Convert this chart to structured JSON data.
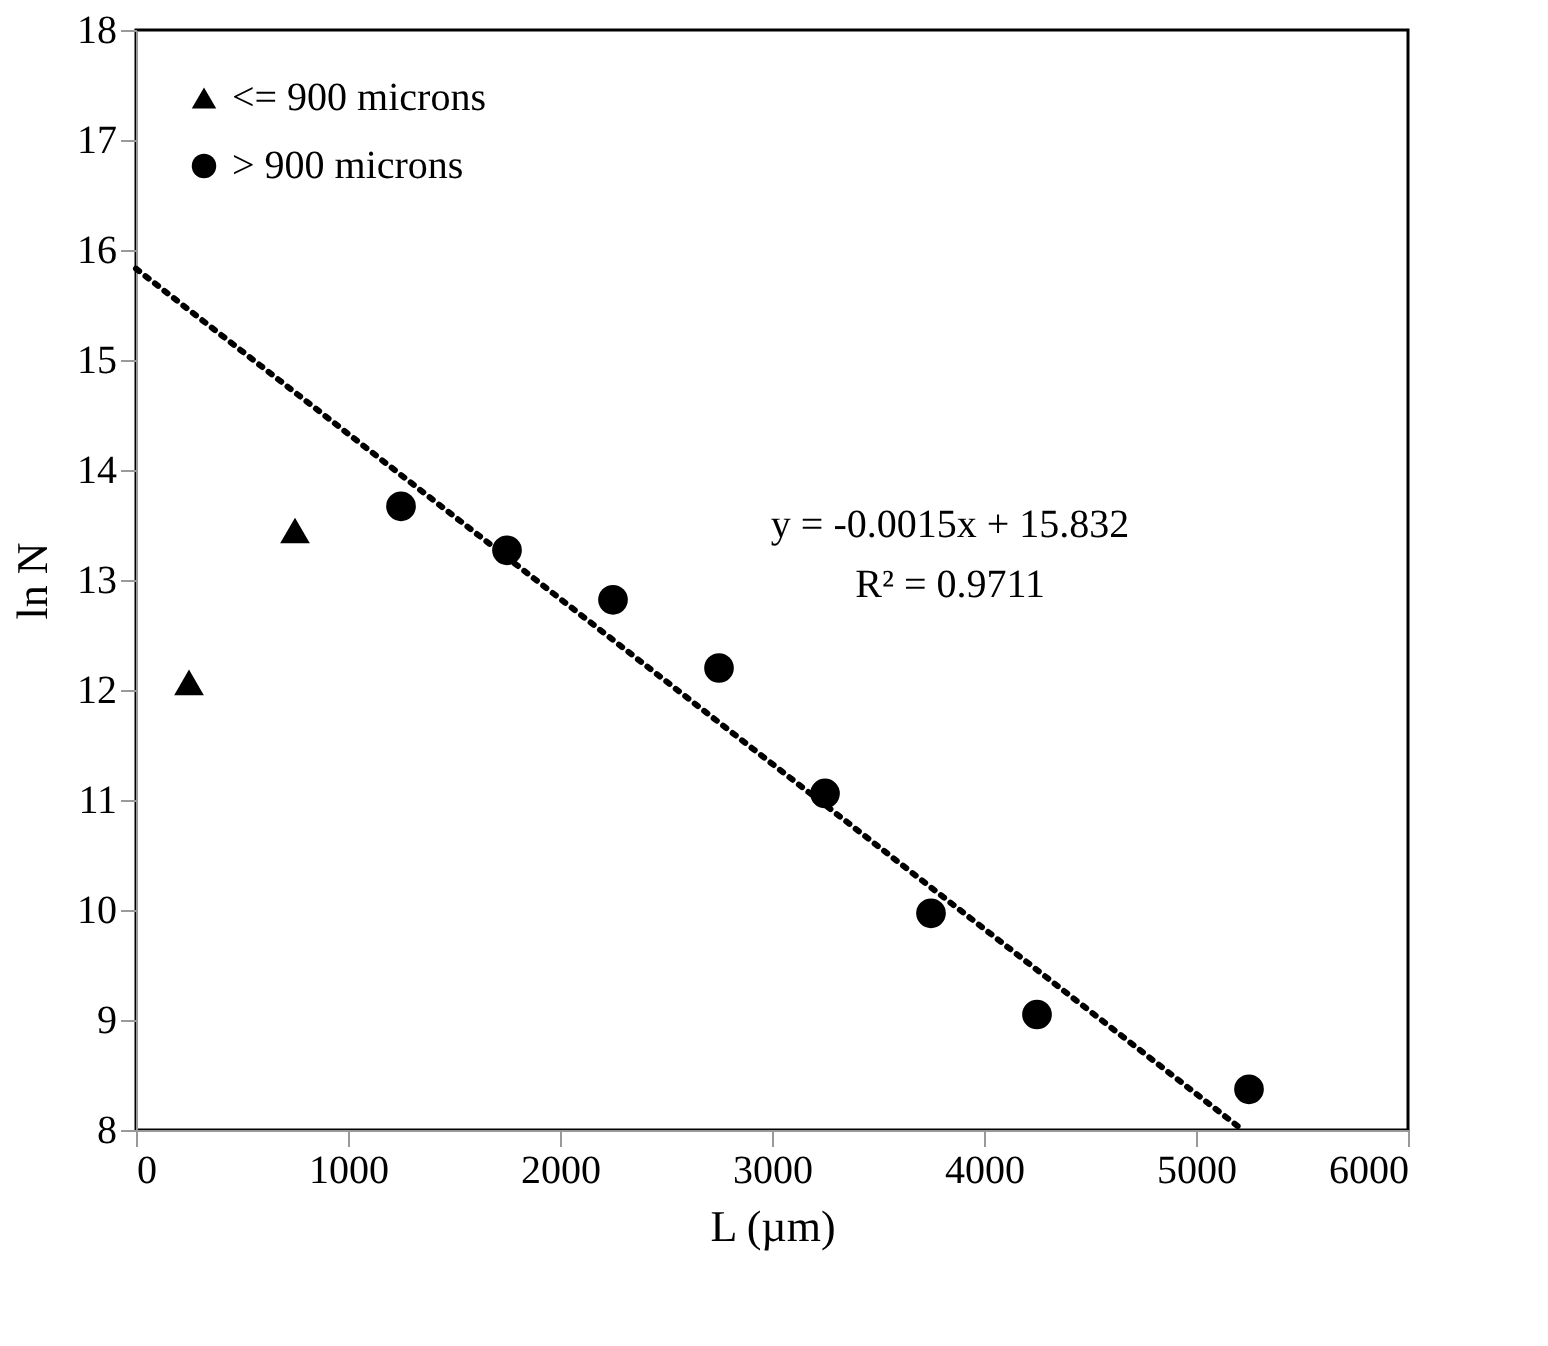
{
  "chart_data": {
    "type": "scatter",
    "xlabel": "L (µm)",
    "ylabel": "ln N",
    "series": [
      {
        "name": "<= 900 microns",
        "color": "#000000",
        "marker": "triangle",
        "x": [
          250,
          750
        ],
        "values": [
          12.07,
          13.45
        ]
      },
      {
        "name": "> 900 microns",
        "color": "#000000",
        "marker": "circle",
        "x": [
          1250,
          1750,
          2250,
          2750,
          3250,
          3750,
          4250,
          5250
        ],
        "values": [
          13.67,
          13.27,
          12.82,
          12.2,
          11.06,
          9.97,
          9.05,
          8.37
        ]
      },
      {
        "type": "line",
        "color": "#000000",
        "line_style": "dotted",
        "x": [
          0,
          5200
        ],
        "values": [
          15.83,
          8.03
        ]
      }
    ],
    "xlim": [
      0,
      6000
    ],
    "xticks": [
      0,
      1000,
      2000,
      3000,
      4000,
      5000,
      6000
    ],
    "ylim": [
      8,
      18
    ],
    "yticks": [
      8,
      9,
      10,
      11,
      12,
      13,
      14,
      15,
      16,
      17,
      18
    ],
    "annotations": [
      "y = -0.0015x + 15.832",
      "R² = 0.9711"
    ],
    "grid": false,
    "legend": "top left"
  }
}
